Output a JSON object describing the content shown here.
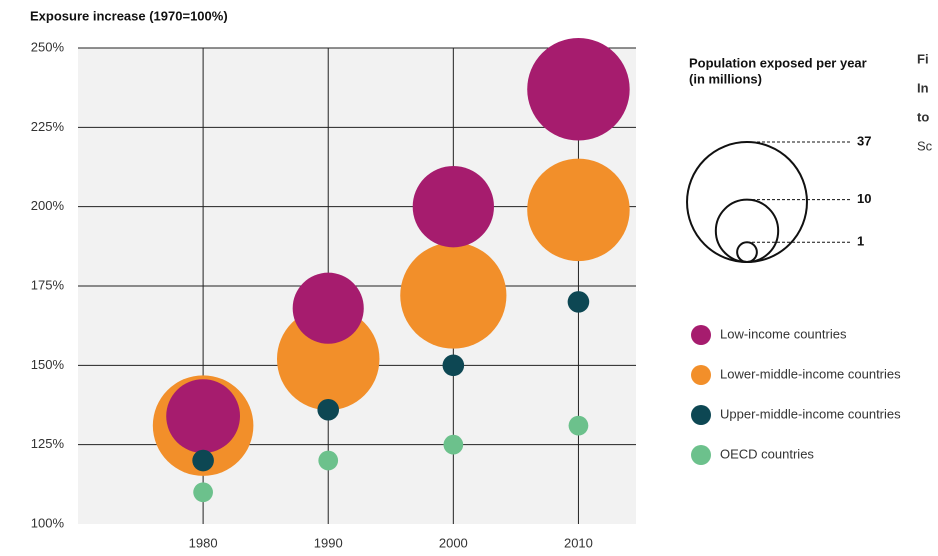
{
  "chart_data": {
    "type": "scatter",
    "y_axis_label": "Exposure increase (1970=100%)",
    "x": [
      1980,
      1990,
      2000,
      2010
    ],
    "xlim": [
      1970,
      2015
    ],
    "xticks": [
      1980,
      1990,
      2000,
      2010
    ],
    "ylim": [
      100,
      250
    ],
    "yticks": [
      {
        "value": 100,
        "label": "100%"
      },
      {
        "value": 125,
        "label": "125%"
      },
      {
        "value": 150,
        "label": "150%"
      },
      {
        "value": 175,
        "label": "175%"
      },
      {
        "value": 200,
        "label": "200%"
      },
      {
        "value": 225,
        "label": "225%"
      },
      {
        "value": 250,
        "label": "250%"
      }
    ],
    "grid": true,
    "series": [
      {
        "name": "Low-income countries",
        "color": "#a61c6e",
        "values": [
          134,
          168,
          200,
          237
        ],
        "sizes": [
          14,
          13,
          17,
          27
        ]
      },
      {
        "name": "Lower-middle-income countries",
        "color": "#f28f2a",
        "values": [
          131,
          152,
          172,
          199
        ],
        "sizes": [
          26,
          27,
          29,
          27
        ]
      },
      {
        "name": "Upper-middle-income countries",
        "color": "#0d4753",
        "values": [
          120,
          136,
          150,
          170
        ],
        "sizes": [
          1.2,
          1.2,
          1.2,
          1.2
        ]
      },
      {
        "name": "OECD countries",
        "color": "#6cc18c",
        "values": [
          110,
          120,
          125,
          131
        ],
        "sizes": [
          1,
          1,
          1,
          1
        ]
      }
    ],
    "size_legend": {
      "title": [
        "Population exposed per year",
        "(in millions)"
      ],
      "values": [
        37,
        10,
        1
      ]
    },
    "side_text": [
      "Fi",
      "In",
      "to",
      "Sc"
    ]
  }
}
